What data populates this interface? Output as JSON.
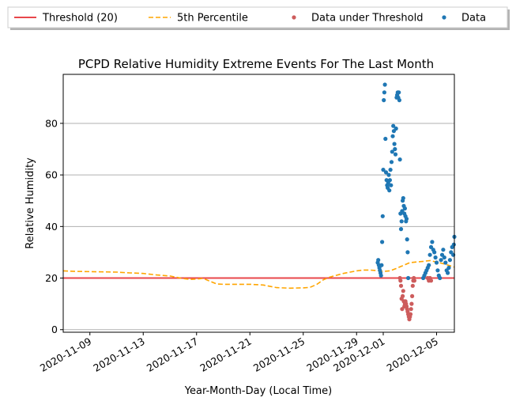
{
  "chart_data": {
    "type": "scatter",
    "title": "PCPD Relative Humidity Extreme Events For The Last Month",
    "xlabel": "Year-Month-Day (Local Time)",
    "ylabel": "Relative Humidity",
    "x_range": [
      "2020-11-07T00:00",
      "2020-12-06T08:00"
    ],
    "ylim": [
      -1,
      99
    ],
    "x_ticks": [
      "2020-11-09",
      "2020-11-13",
      "2020-11-17",
      "2020-11-21",
      "2020-11-25",
      "2020-11-29",
      "2020-12-01",
      "2020-12-05"
    ],
    "y_ticks": [
      0,
      20,
      40,
      60,
      80
    ],
    "grid": "horizontal",
    "legend_placement": "top, outside",
    "legend": [
      {
        "label": "Threshold (20)",
        "kind": "solid-line",
        "color": "#e8474b"
      },
      {
        "label": "5th Percentile",
        "kind": "dashed-line",
        "color": "#ffa500"
      },
      {
        "label": "Data under Threshold",
        "kind": "dot",
        "color": "#cd5c5c"
      },
      {
        "label": "Data",
        "kind": "dot",
        "color": "#1f77b4"
      }
    ],
    "threshold": 20,
    "series": [
      {
        "name": "5th Percentile",
        "style": "dashed-line",
        "color": "#ffa500",
        "points": [
          [
            "2020-11-07T00:00",
            22.8
          ],
          [
            "2020-11-08T00:00",
            22.6
          ],
          [
            "2020-11-09T00:00",
            22.5
          ],
          [
            "2020-11-10T00:00",
            22.4
          ],
          [
            "2020-11-11T00:00",
            22.3
          ],
          [
            "2020-11-12T00:00",
            22.0
          ],
          [
            "2020-11-13T00:00",
            21.8
          ],
          [
            "2020-11-14T00:00",
            21.2
          ],
          [
            "2020-11-15T00:00",
            20.8
          ],
          [
            "2020-11-16T00:00",
            19.8
          ],
          [
            "2020-11-16T12:00",
            19.5
          ],
          [
            "2020-11-17T00:00",
            19.6
          ],
          [
            "2020-11-17T12:00",
            19.9
          ],
          [
            "2020-11-18T00:00",
            18.8
          ],
          [
            "2020-11-18T12:00",
            17.7
          ],
          [
            "2020-11-19T00:00",
            17.6
          ],
          [
            "2020-11-20T00:00",
            17.6
          ],
          [
            "2020-11-21T00:00",
            17.6
          ],
          [
            "2020-11-22T00:00",
            17.3
          ],
          [
            "2020-11-23T00:00",
            16.3
          ],
          [
            "2020-11-24T00:00",
            16.1
          ],
          [
            "2020-11-25T00:00",
            16.2
          ],
          [
            "2020-11-25T12:00",
            16.4
          ],
          [
            "2020-11-26T00:00",
            17.5
          ],
          [
            "2020-11-26T12:00",
            19.3
          ],
          [
            "2020-11-27T00:00",
            20.4
          ],
          [
            "2020-11-28T00:00",
            21.8
          ],
          [
            "2020-11-29T00:00",
            22.8
          ],
          [
            "2020-11-29T12:00",
            23.1
          ],
          [
            "2020-11-30T00:00",
            23.1
          ],
          [
            "2020-11-30T12:00",
            22.9
          ],
          [
            "2020-12-01T00:00",
            22.6
          ],
          [
            "2020-12-01T12:00",
            22.8
          ],
          [
            "2020-12-02T00:00",
            23.8
          ],
          [
            "2020-12-03T00:00",
            26.0
          ],
          [
            "2020-12-04T00:00",
            26.5
          ],
          [
            "2020-12-04T12:00",
            26.8
          ],
          [
            "2020-12-05T00:00",
            26.2
          ],
          [
            "2020-12-05T12:00",
            25.6
          ],
          [
            "2020-12-06T00:00",
            24.8
          ],
          [
            "2020-12-06T08:00",
            24.2
          ]
        ]
      },
      {
        "name": "Data under Threshold",
        "style": "dots",
        "color": "#cd5c5c",
        "points": [
          [
            "2020-12-02T06:00",
            20
          ],
          [
            "2020-12-02T07:00",
            19
          ],
          [
            "2020-12-02T08:00",
            17
          ],
          [
            "2020-12-02T09:00",
            12
          ],
          [
            "2020-12-02T10:00",
            8
          ],
          [
            "2020-12-02T11:00",
            13
          ],
          [
            "2020-12-02T12:00",
            15
          ],
          [
            "2020-12-02T13:00",
            11
          ],
          [
            "2020-12-02T14:00",
            9
          ],
          [
            "2020-12-02T15:00",
            10
          ],
          [
            "2020-12-02T16:00",
            11
          ],
          [
            "2020-12-02T17:00",
            10
          ],
          [
            "2020-12-02T18:00",
            9
          ],
          [
            "2020-12-02T19:00",
            8
          ],
          [
            "2020-12-02T20:00",
            7
          ],
          [
            "2020-12-02T21:00",
            6
          ],
          [
            "2020-12-02T22:00",
            5
          ],
          [
            "2020-12-02T23:00",
            4
          ],
          [
            "2020-12-03T00:00",
            5
          ],
          [
            "2020-12-03T01:00",
            6
          ],
          [
            "2020-12-03T02:00",
            8
          ],
          [
            "2020-12-03T03:00",
            10
          ],
          [
            "2020-12-03T04:00",
            13
          ],
          [
            "2020-12-03T05:00",
            17
          ],
          [
            "2020-12-03T06:00",
            19
          ],
          [
            "2020-12-03T07:00",
            20
          ],
          [
            "2020-12-03T08:00",
            19
          ],
          [
            "2020-12-04T08:00",
            20
          ],
          [
            "2020-12-04T10:00",
            19
          ],
          [
            "2020-12-04T12:00",
            20
          ],
          [
            "2020-12-04T14:00",
            19
          ]
        ]
      },
      {
        "name": "Data",
        "style": "dots",
        "color": "#1f77b4",
        "points": [
          [
            "2020-11-30T14:00",
            26
          ],
          [
            "2020-11-30T15:00",
            27
          ],
          [
            "2020-11-30T16:00",
            25
          ],
          [
            "2020-11-30T17:00",
            24
          ],
          [
            "2020-11-30T18:00",
            23
          ],
          [
            "2020-11-30T19:00",
            22
          ],
          [
            "2020-11-30T20:00",
            21
          ],
          [
            "2020-11-30T21:00",
            25
          ],
          [
            "2020-11-30T22:00",
            34
          ],
          [
            "2020-11-30T23:00",
            44
          ],
          [
            "2020-12-01T00:00",
            62
          ],
          [
            "2020-12-01T01:00",
            89
          ],
          [
            "2020-12-01T02:00",
            92
          ],
          [
            "2020-12-01T03:00",
            95
          ],
          [
            "2020-12-01T04:00",
            74
          ],
          [
            "2020-12-01T05:00",
            61
          ],
          [
            "2020-12-01T06:00",
            58
          ],
          [
            "2020-12-01T07:00",
            56
          ],
          [
            "2020-12-01T08:00",
            55
          ],
          [
            "2020-12-01T09:00",
            57
          ],
          [
            "2020-12-01T10:00",
            60
          ],
          [
            "2020-12-01T11:00",
            54
          ],
          [
            "2020-12-01T12:00",
            58
          ],
          [
            "2020-12-01T13:00",
            62
          ],
          [
            "2020-12-01T14:00",
            56
          ],
          [
            "2020-12-01T15:00",
            65
          ],
          [
            "2020-12-01T16:00",
            69
          ],
          [
            "2020-12-01T17:00",
            75
          ],
          [
            "2020-12-01T18:00",
            79
          ],
          [
            "2020-12-01T19:00",
            77
          ],
          [
            "2020-12-01T20:00",
            72
          ],
          [
            "2020-12-01T21:00",
            70
          ],
          [
            "2020-12-01T22:00",
            68
          ],
          [
            "2020-12-01T23:00",
            78
          ],
          [
            "2020-12-02T00:00",
            90
          ],
          [
            "2020-12-02T01:00",
            91
          ],
          [
            "2020-12-02T02:00",
            92
          ],
          [
            "2020-12-02T03:00",
            90
          ],
          [
            "2020-12-02T04:00",
            92
          ],
          [
            "2020-12-02T05:00",
            89
          ],
          [
            "2020-12-02T06:00",
            66
          ],
          [
            "2020-12-02T07:00",
            45
          ],
          [
            "2020-12-02T08:00",
            39
          ],
          [
            "2020-12-02T09:00",
            42
          ],
          [
            "2020-12-02T10:00",
            46
          ],
          [
            "2020-12-02T11:00",
            50
          ],
          [
            "2020-12-02T12:00",
            51
          ],
          [
            "2020-12-02T13:00",
            48
          ],
          [
            "2020-12-02T14:00",
            45
          ],
          [
            "2020-12-02T15:00",
            47
          ],
          [
            "2020-12-02T16:00",
            44
          ],
          [
            "2020-12-02T17:00",
            42
          ],
          [
            "2020-12-02T18:00",
            43
          ],
          [
            "2020-12-02T19:00",
            35
          ],
          [
            "2020-12-02T20:00",
            30
          ],
          [
            "2020-12-02T21:00",
            20
          ],
          [
            "2020-12-04T00:00",
            20
          ],
          [
            "2020-12-04T02:00",
            21
          ],
          [
            "2020-12-04T04:00",
            22
          ],
          [
            "2020-12-04T06:00",
            23
          ],
          [
            "2020-12-04T08:00",
            24
          ],
          [
            "2020-12-04T10:00",
            25
          ],
          [
            "2020-12-04T12:00",
            29
          ],
          [
            "2020-12-04T14:00",
            32
          ],
          [
            "2020-12-04T16:00",
            34
          ],
          [
            "2020-12-04T18:00",
            31
          ],
          [
            "2020-12-04T20:00",
            30
          ],
          [
            "2020-12-04T22:00",
            28
          ],
          [
            "2020-12-05T00:00",
            26
          ],
          [
            "2020-12-05T02:00",
            23
          ],
          [
            "2020-12-05T04:00",
            21
          ],
          [
            "2020-12-05T06:00",
            20
          ],
          [
            "2020-12-05T08:00",
            27
          ],
          [
            "2020-12-05T10:00",
            29
          ],
          [
            "2020-12-05T12:00",
            31
          ],
          [
            "2020-12-05T14:00",
            28
          ],
          [
            "2020-12-05T16:00",
            26
          ],
          [
            "2020-12-05T18:00",
            23
          ],
          [
            "2020-12-05T20:00",
            22
          ],
          [
            "2020-12-05T22:00",
            24
          ],
          [
            "2020-12-06T00:00",
            27
          ],
          [
            "2020-12-06T02:00",
            30
          ],
          [
            "2020-12-06T04:00",
            32
          ],
          [
            "2020-12-06T06:00",
            29
          ],
          [
            "2020-12-06T07:00",
            33
          ],
          [
            "2020-12-06T08:00",
            36
          ]
        ]
      }
    ]
  }
}
